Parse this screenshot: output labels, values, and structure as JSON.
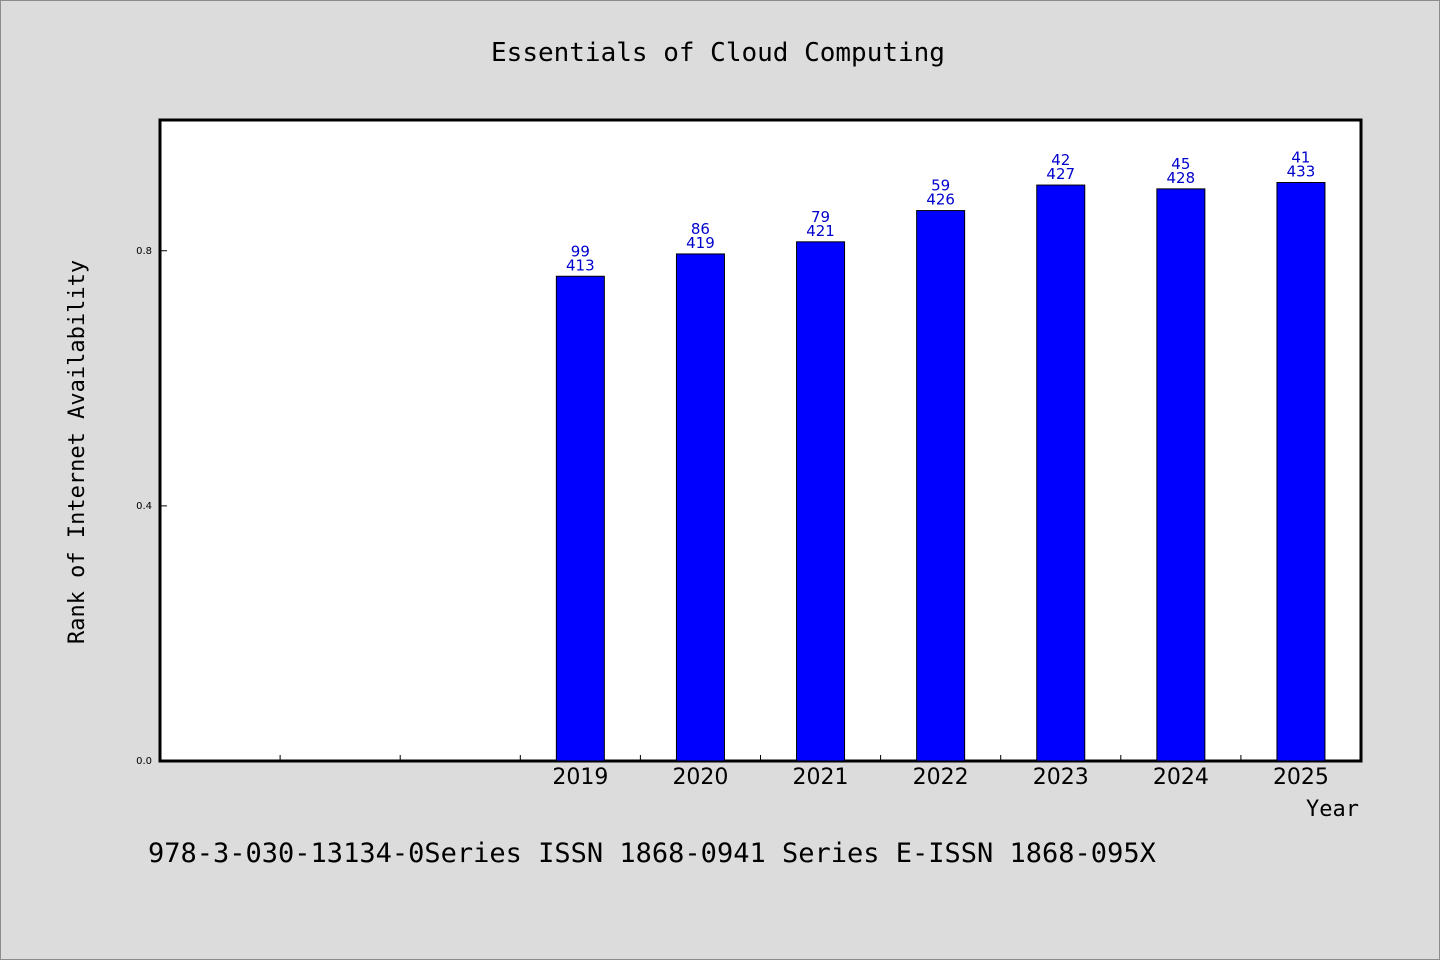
{
  "chart_data": {
    "type": "bar",
    "title": "Essentials of Cloud Computing",
    "xlabel": "Year",
    "ylabel": "Rank of Internet Availability",
    "categories": [
      "",
      "",
      "",
      "2019",
      "2020",
      "2021",
      "2022",
      "2023",
      "2024",
      "2025"
    ],
    "values": [
      null,
      null,
      null,
      0.76,
      0.795,
      0.814,
      0.863,
      0.903,
      0.897,
      0.907
    ],
    "bar_labels": [
      null,
      null,
      null,
      [
        "99",
        "413"
      ],
      [
        "86",
        "419"
      ],
      [
        "79",
        "421"
      ],
      [
        "59",
        "426"
      ],
      [
        "42",
        "427"
      ],
      [
        "45",
        "428"
      ],
      [
        "41",
        "433"
      ]
    ],
    "ylim": [
      0,
      1.005
    ],
    "yticks": [
      0.0,
      0.4,
      0.8
    ],
    "ytick_labels": [
      "0.0",
      "0.4",
      "0.8"
    ],
    "grid": false,
    "legend": "none",
    "colors": {
      "bar": "#0000ff",
      "bar_label": "#0000cc",
      "background": "#dcdcdc",
      "plot_area": "#ffffff"
    }
  },
  "footer": "978-3-030-13134-0Series ISSN 1868-0941 Series E-ISSN 1868-095X"
}
